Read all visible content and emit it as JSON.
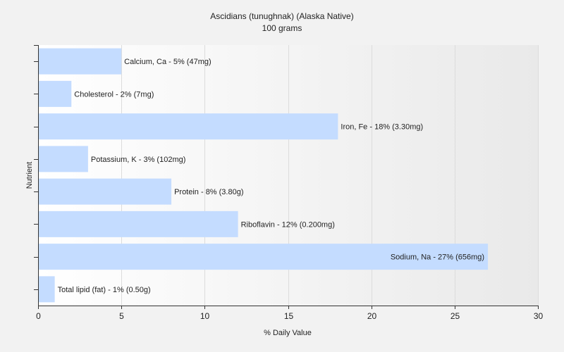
{
  "chart_data": {
    "type": "bar",
    "orientation": "horizontal",
    "title": "Ascidians (tunughnak) (Alaska Native)",
    "subtitle": "100 grams",
    "xlabel": "% Daily Value",
    "ylabel": "Nutrient",
    "xlim": [
      0,
      30
    ],
    "xticks": [
      0,
      5,
      10,
      15,
      20,
      25,
      30
    ],
    "grid": true,
    "bar_color": "#c4dcff",
    "bars": [
      {
        "value": 5,
        "label": "Calcium, Ca - 5% (47mg)"
      },
      {
        "value": 2,
        "label": "Cholesterol - 2% (7mg)"
      },
      {
        "value": 18,
        "label": "Iron, Fe - 18% (3.30mg)"
      },
      {
        "value": 3,
        "label": "Potassium, K - 3% (102mg)"
      },
      {
        "value": 8,
        "label": "Protein - 8% (3.80g)"
      },
      {
        "value": 12,
        "label": "Riboflavin - 12% (0.200mg)"
      },
      {
        "value": 27,
        "label": "Sodium, Na - 27% (656mg)"
      },
      {
        "value": 1,
        "label": "Total lipid (fat) - 1% (0.50g)"
      }
    ]
  }
}
